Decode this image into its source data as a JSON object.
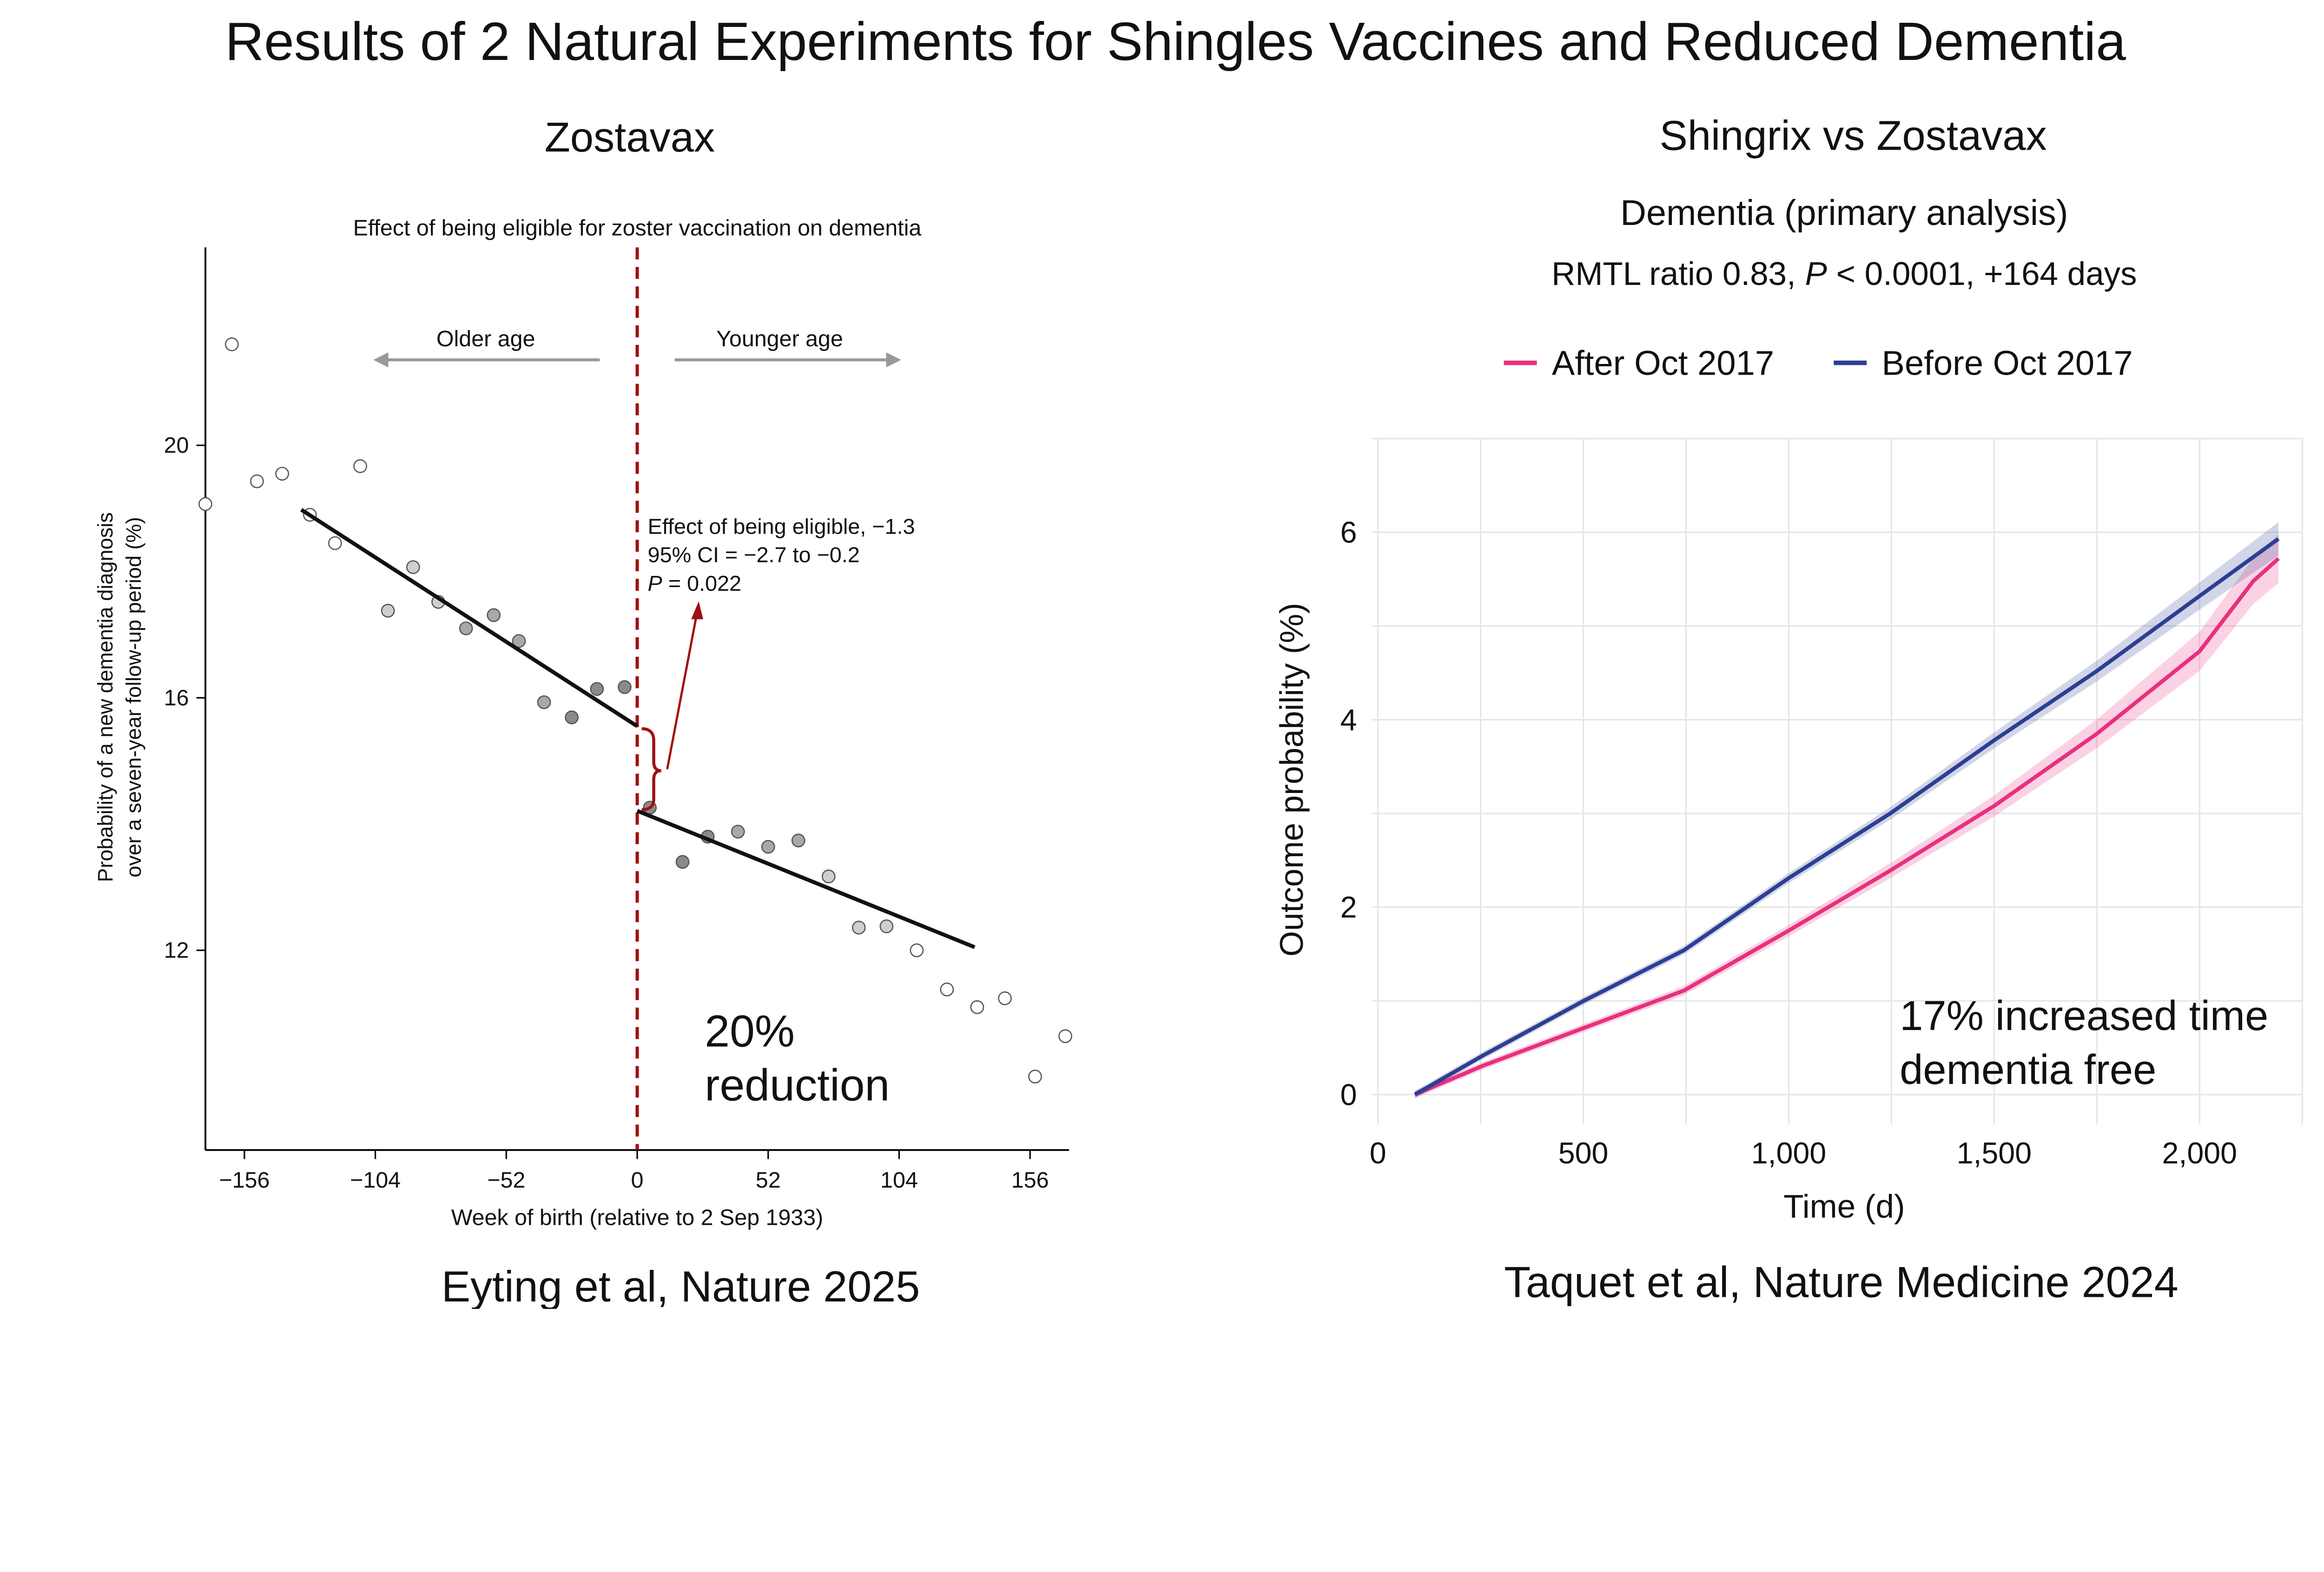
{
  "title": "Results of 2 Natural Experiments for Shingles Vaccines and Reduced  Dementia",
  "chart_data": [
    {
      "type": "scatter",
      "heading": "Zostavax",
      "title": "Effect of being eligible for zoster vaccination on dementia",
      "xlabel": "Week of birth (relative to 2 Sep 1933)",
      "ylabel_lines": [
        "Probability of a new dementia diagnosis",
        "over a seven-year follow-up period (%)"
      ],
      "xlim": [
        -171.5,
        171.5
      ],
      "ylim": [
        8.8,
        23.1
      ],
      "xticks": [
        -156,
        -104,
        -52,
        0,
        52,
        104,
        156
      ],
      "xtick_labels": [
        "−156",
        "−104",
        "−52",
        "0",
        "52",
        "104",
        "156"
      ],
      "yticks": [
        12,
        16,
        20
      ],
      "grid": false,
      "cutoff_x": 0,
      "cutoff_color": "#a01010",
      "points": [
        {
          "x": -171.5,
          "y": 19.07
        },
        {
          "x": -161,
          "y": 21.6
        },
        {
          "x": -151,
          "y": 19.43
        },
        {
          "x": -141,
          "y": 19.55
        },
        {
          "x": -130,
          "y": 18.9
        },
        {
          "x": -120,
          "y": 18.45
        },
        {
          "x": -110,
          "y": 19.67
        },
        {
          "x": -99,
          "y": 17.38
        },
        {
          "x": -89,
          "y": 18.07
        },
        {
          "x": -79,
          "y": 17.52
        },
        {
          "x": -68,
          "y": 17.1
        },
        {
          "x": -57,
          "y": 17.31
        },
        {
          "x": -47,
          "y": 16.9
        },
        {
          "x": -37,
          "y": 15.93
        },
        {
          "x": -26,
          "y": 15.69
        },
        {
          "x": -16,
          "y": 16.14
        },
        {
          "x": -5,
          "y": 16.17
        },
        {
          "x": 5,
          "y": 14.26
        },
        {
          "x": 18,
          "y": 13.4
        },
        {
          "x": 28,
          "y": 13.8
        },
        {
          "x": 40,
          "y": 13.88
        },
        {
          "x": 52,
          "y": 13.64
        },
        {
          "x": 64,
          "y": 13.74
        },
        {
          "x": 76,
          "y": 13.17
        },
        {
          "x": 88,
          "y": 12.36
        },
        {
          "x": 99,
          "y": 12.38
        },
        {
          "x": 111,
          "y": 12.0
        },
        {
          "x": 123,
          "y": 11.38
        },
        {
          "x": 135,
          "y": 11.1
        },
        {
          "x": 146,
          "y": 11.24
        },
        {
          "x": 158,
          "y": 10.0
        },
        {
          "x": 170,
          "y": 10.64
        }
      ],
      "fit_lines": [
        {
          "x": [
            -133.4,
            0
          ],
          "y": [
            18.98,
            15.55
          ]
        },
        {
          "x": [
            0,
            134
          ],
          "y": [
            14.21,
            12.05
          ]
        }
      ],
      "annotations": {
        "older": "Older age",
        "younger": "Younger age",
        "effect_line1": "Effect of being eligible, −1.3",
        "effect_line2": "95% CI = −2.7 to −0.2",
        "effect_p_label": "P",
        "effect_p_value": " = 0.022",
        "reduction_line1": "20%",
        "reduction_line2": "reduction"
      },
      "citation": "Eyting et al, Nature 2025"
    },
    {
      "type": "line",
      "heading": "Shingrix vs Zostavax",
      "title": "Dementia (primary analysis)",
      "subtitle_parts": [
        "RMTL ratio 0.83, ",
        "P",
        " < 0.0001, +164 days"
      ],
      "xlabel": "Time (d)",
      "ylabel": "Outcome probability (%)",
      "xlim": [
        0,
        2250
      ],
      "ylim": [
        -0.32,
        7
      ],
      "xticks": [
        0,
        500,
        1000,
        1500,
        2000
      ],
      "xtick_labels": [
        "0",
        "500",
        "1,000",
        "1,500",
        "2,000"
      ],
      "yticks": [
        0,
        2,
        4,
        6
      ],
      "grid": true,
      "legend_placement": "top",
      "series": [
        {
          "name": "After Oct 2017",
          "color": "#e8307f",
          "x": [
            90,
            257,
            501,
            745,
            1000,
            1247,
            1500,
            1750,
            2000,
            2131,
            2192
          ],
          "y": [
            0,
            0.31,
            0.71,
            1.11,
            1.75,
            2.39,
            3.08,
            3.85,
            4.73,
            5.48,
            5.72
          ]
        },
        {
          "name": "Before Oct 2017",
          "color": "#2c3f93",
          "x": [
            90,
            257,
            501,
            745,
            1000,
            1247,
            1500,
            1750,
            2000,
            2192
          ],
          "y": [
            0,
            0.42,
            1.0,
            1.54,
            2.31,
            3.0,
            3.78,
            4.52,
            5.32,
            5.93
          ]
        }
      ],
      "annotations": {
        "line1": "17% increased time",
        "line2": "dementia free"
      },
      "citation": "Taquet et al, Nature Medicine 2024"
    }
  ]
}
